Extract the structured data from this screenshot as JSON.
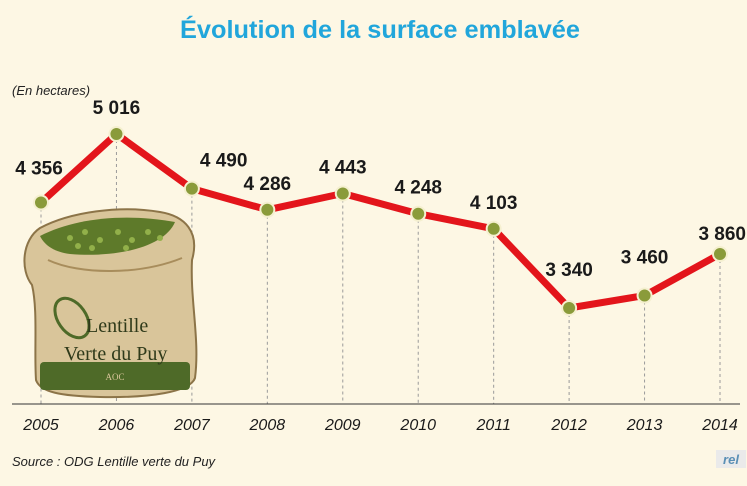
{
  "chart_data": {
    "type": "line",
    "title": "Évolution de la surface emblavée",
    "unit_label": "(En hectares)",
    "x": [
      "2005",
      "2006",
      "2007",
      "2008",
      "2009",
      "2010",
      "2011",
      "2012",
      "2013",
      "2014"
    ],
    "value_labels": [
      "4 356",
      "5 016",
      "4 490",
      "4 286",
      "4 443",
      "4 248",
      "4 103",
      "3 340",
      "3 460",
      "3 860"
    ],
    "series": [
      {
        "values": [
          4356,
          5016,
          4490,
          4286,
          4443,
          4248,
          4103,
          3340,
          3460,
          3860
        ]
      }
    ],
    "ylim": [
      3000,
      5200
    ],
    "grid": "vertical dashed guides",
    "source": "Source : ODG Lentille verte du Puy",
    "colors": {
      "title": "#21a6db",
      "line": "#e3151b",
      "marker": "#8a9b3a",
      "background": "#fdf7e4",
      "guide": "#9a9a9a"
    }
  },
  "illustration": {
    "icon": "lentil-sack-icon",
    "label_line1": "Lentille",
    "label_line2": "Verte du Puy",
    "label_line3": "AOC"
  },
  "watermark": "rel"
}
